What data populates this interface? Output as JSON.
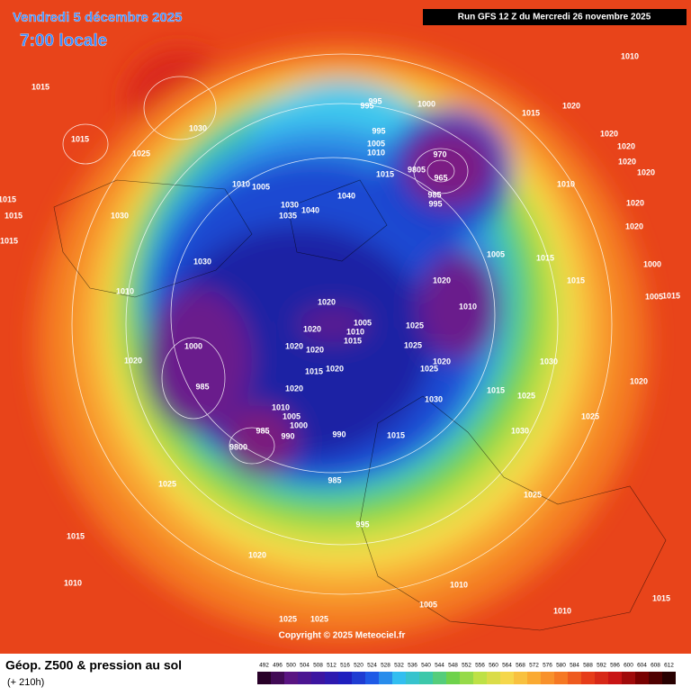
{
  "header": {
    "date": "Vendredi 5 décembre 2025",
    "time": "7:00 locale",
    "run": "Run GFS 12 Z du Mercredi 26 novembre 2025"
  },
  "copyright": "Copyright © 2025 Meteociel.fr",
  "footer": {
    "title": "Géop. Z500 & pression au sol",
    "subtitle": "(+ 210h)",
    "scale": [
      492,
      496,
      500,
      504,
      508,
      512,
      516,
      520,
      524,
      528,
      532,
      536,
      540,
      544,
      548,
      552,
      556,
      560,
      564,
      568,
      572,
      576,
      580,
      584,
      588,
      592,
      596,
      600,
      604,
      608,
      612
    ]
  },
  "pressure_labels": [
    "1015",
    "1015",
    "1025",
    "1030",
    "1015",
    "1015",
    "1015",
    "1030",
    "1010",
    "1005",
    "1030",
    "1035",
    "1040",
    "1040",
    "995",
    "995",
    "1000",
    "995",
    "1005",
    "1010",
    "1015",
    "970",
    "9805",
    "965",
    "985",
    "995",
    "1010",
    "1015",
    "1020",
    "1020",
    "1020",
    "1020",
    "1020",
    "1010",
    "1020",
    "1020",
    "1005",
    "1015",
    "1000",
    "1015",
    "1020",
    "1010",
    "1005",
    "1015",
    "1030",
    "1010",
    "1020",
    "1005",
    "1020",
    "1010",
    "1015",
    "1025",
    "1025",
    "1020",
    "1020",
    "1000",
    "1020",
    "985",
    "1020",
    "1015",
    "1020",
    "1025",
    "1030",
    "1015",
    "1025",
    "1030",
    "1020",
    "1020",
    "1010",
    "1005",
    "1000",
    "990",
    "990",
    "1015",
    "1030",
    "1025",
    "985",
    "9800",
    "985",
    "1025",
    "1025",
    "995",
    "1015",
    "1020",
    "1010",
    "1010",
    "1005",
    "1010",
    "1015",
    "1025",
    "1025"
  ]
}
